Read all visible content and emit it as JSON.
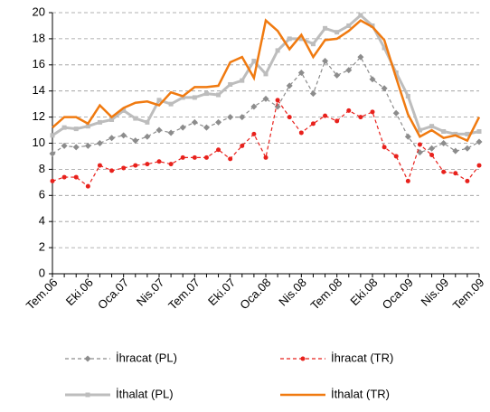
{
  "chart_data": {
    "type": "line",
    "categories": [
      "Tem.06",
      null,
      null,
      "Eki.06",
      null,
      null,
      "Oca.07",
      null,
      null,
      "Nis.07",
      null,
      null,
      "Tem.07",
      null,
      null,
      "Eki.07",
      null,
      null,
      "Oca.08",
      null,
      null,
      "Nis.08",
      null,
      null,
      "Tem.08",
      null,
      null,
      "Eki.08",
      null,
      null,
      "Oca.09",
      null,
      null,
      "Nis.09",
      null,
      null,
      "Tem.09"
    ],
    "series": [
      {
        "name": "İhracat (PL)",
        "color": "#8c8c8c",
        "dash": true,
        "marker": "diamond",
        "line_width": 1.2,
        "values": [
          9.2,
          9.8,
          9.7,
          9.8,
          10.0,
          10.4,
          10.6,
          10.2,
          10.5,
          11.0,
          10.8,
          11.2,
          11.6,
          11.2,
          11.6,
          12.0,
          12.0,
          12.8,
          13.4,
          12.8,
          14.4,
          15.4,
          13.8,
          16.3,
          15.2,
          15.6,
          16.6,
          14.9,
          14.2,
          12.3,
          10.5,
          9.3,
          9.6,
          10.0,
          9.4,
          9.6,
          10.1
        ]
      },
      {
        "name": "İhracat (TR)",
        "color": "#e8211c",
        "dash": true,
        "marker": "circle",
        "line_width": 1.2,
        "values": [
          7.1,
          7.4,
          7.4,
          6.7,
          8.3,
          7.9,
          8.1,
          8.3,
          8.4,
          8.6,
          8.4,
          8.9,
          8.9,
          8.9,
          9.5,
          8.8,
          9.8,
          10.7,
          8.9,
          13.3,
          12.0,
          10.8,
          11.5,
          12.1,
          11.7,
          12.5,
          12.0,
          12.4,
          9.7,
          9.0,
          7.1,
          9.9,
          9.1,
          7.8,
          7.7,
          7.1,
          8.3
        ]
      },
      {
        "name": "İthalat (PL)",
        "color": "#bdbdbd",
        "dash": false,
        "marker": "square",
        "line_width": 3,
        "values": [
          10.6,
          11.2,
          11.1,
          11.3,
          11.6,
          11.8,
          12.5,
          11.9,
          11.6,
          13.3,
          13.0,
          13.5,
          13.5,
          13.8,
          13.7,
          14.5,
          14.8,
          16.3,
          15.3,
          17.1,
          18.0,
          18.0,
          17.6,
          18.8,
          18.5,
          19.0,
          19.8,
          19.0,
          17.3,
          15.4,
          13.6,
          11.0,
          11.3,
          10.9,
          10.7,
          10.7,
          10.9
        ]
      },
      {
        "name": "İthalat (TR)",
        "color": "#f07a10",
        "dash": false,
        "marker": "none",
        "line_width": 2.5,
        "values": [
          11.2,
          12.0,
          12.0,
          11.5,
          12.9,
          12.0,
          12.7,
          13.1,
          13.2,
          12.9,
          13.9,
          13.6,
          14.3,
          14.3,
          14.4,
          16.2,
          16.6,
          15.0,
          19.4,
          18.6,
          17.2,
          18.3,
          16.6,
          17.9,
          18.0,
          18.6,
          19.4,
          18.9,
          17.9,
          15.0,
          12.2,
          10.5,
          11.0,
          10.4,
          10.6,
          10.2,
          12.0
        ]
      }
    ],
    "ylim": [
      0,
      20
    ],
    "yticks": [
      0,
      2,
      4,
      6,
      8,
      10,
      12,
      14,
      16,
      18,
      20
    ],
    "grid": true,
    "legend": "bottom"
  }
}
